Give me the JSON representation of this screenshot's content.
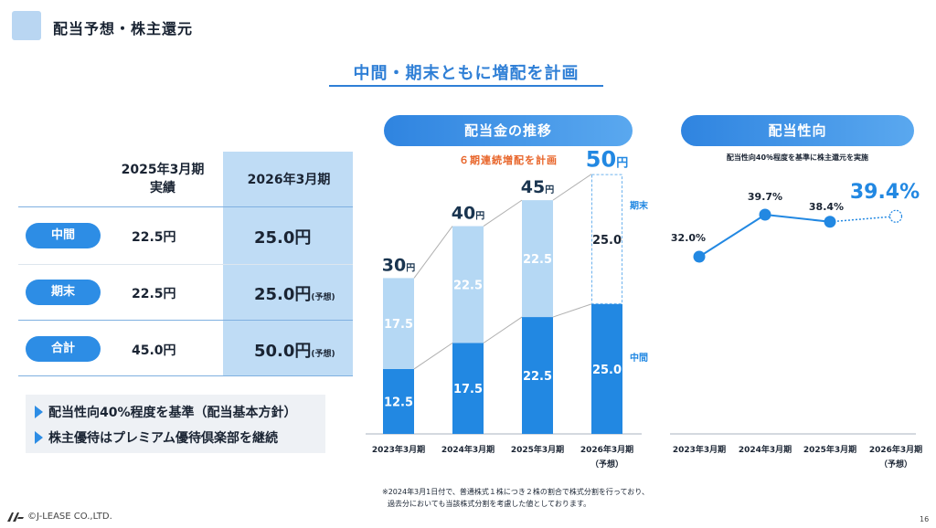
{
  "header": {
    "title": "配当予想・株主還元"
  },
  "headline": "中間・期末ともに増配を計画",
  "table": {
    "col_2025": "2025年3月期\n実績",
    "col_2025_l1": "2025年3月期",
    "col_2025_l2": "実績",
    "col_2026": "2026年3月期",
    "rows": [
      {
        "label": "中間",
        "v2025": "22.5円",
        "v2026": "25.0円",
        "suffix": ""
      },
      {
        "label": "期末",
        "v2025": "22.5円",
        "v2026": "25.0円",
        "suffix": "(予想)"
      },
      {
        "label": "合計",
        "v2025": "45.0円",
        "v2026": "50.0円",
        "suffix": "(予想)"
      }
    ]
  },
  "policy": [
    "配当性向40%程度を基準（配当基本方針）",
    "株主優待はプレミアム優待倶楽部を継続"
  ],
  "dividend_section": {
    "title": "配当金の推移",
    "subtitle": "６期連続増配を計画",
    "label_final": "期末",
    "label_interim": "中間"
  },
  "payout_section": {
    "title": "配当性向",
    "subtitle": "配当性向40％程度を基準に株主還元を実施"
  },
  "chart_data": [
    {
      "type": "bar",
      "title": "配当金の推移",
      "categories": [
        "2023年3月期",
        "2024年3月期",
        "2025年3月期",
        "2026年3月期\n（予想）"
      ],
      "category_labels": [
        "2023年3月期",
        "2024年3月期",
        "2025年3月期",
        "2026年3月期"
      ],
      "category_sub": [
        "",
        "",
        "",
        "（予想）"
      ],
      "series": [
        {
          "name": "中間",
          "values": [
            12.5,
            17.5,
            22.5,
            25.0
          ],
          "labels": [
            "12.5",
            "17.5",
            "22.5",
            "25.0"
          ]
        },
        {
          "name": "期末",
          "values": [
            17.5,
            22.5,
            22.5,
            25.0
          ],
          "labels": [
            "17.5",
            "22.5",
            "22.5",
            "25.0"
          ]
        }
      ],
      "totals": [
        30,
        40,
        45,
        50
      ],
      "total_labels": [
        "30",
        "40",
        "45",
        "50"
      ],
      "unit": "円",
      "ylim": [
        0,
        55
      ],
      "forecast_index": 3
    },
    {
      "type": "line",
      "title": "配当性向",
      "categories": [
        "2023年3月期",
        "2024年3月期",
        "2025年3月期",
        "2026年3月期\n（予想）"
      ],
      "category_labels": [
        "2023年3月期",
        "2024年3月期",
        "2025年3月期",
        "2026年3月期"
      ],
      "category_sub": [
        "",
        "",
        "",
        "（予想）"
      ],
      "values": [
        32.0,
        39.7,
        38.4,
        39.4
      ],
      "labels": [
        "32.0%",
        "39.7%",
        "38.4%",
        "39.4%"
      ],
      "ylim": [
        28,
        44
      ],
      "forecast_index": 3
    }
  ],
  "footnote": [
    "※2024年3月1日付で、普通株式１株につき２株の割合で株式分割を行っており、",
    "過去分においても当該株式分割を考慮した値としております。"
  ],
  "footer": {
    "copyright": "©J-LEASE CO.,LTD.",
    "page": "16"
  },
  "colors": {
    "dark_blue": "#2288e2",
    "light_blue": "#b5d8f4",
    "accent_orange": "#e8652a",
    "table_hl": "#bfdcf5"
  }
}
